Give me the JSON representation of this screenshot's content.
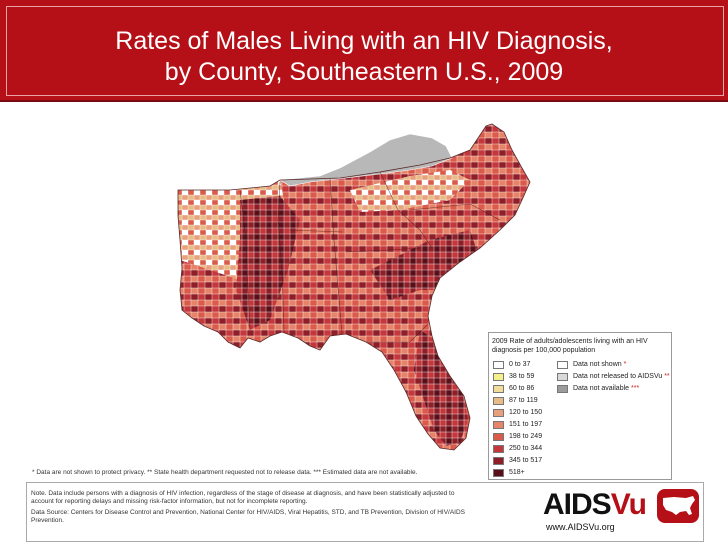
{
  "title_line1": "Rates of Males Living with an HIV Diagnosis,",
  "title_line2": "by County, Southeastern U.S., 2009",
  "legend": {
    "title_line1": "2009 Rate of adults/adolescents living with an HIV",
    "title_line2": "diagnosis per 100,000 population",
    "rate_classes": [
      {
        "label": "0 to 37",
        "color": "#ffffff"
      },
      {
        "label": "38 to 59",
        "color": "#f6f08a"
      },
      {
        "label": "60 to 86",
        "color": "#f1dc9a"
      },
      {
        "label": "87 to 119",
        "color": "#e8bb87"
      },
      {
        "label": "120 to 150",
        "color": "#e8a07c"
      },
      {
        "label": "151 to 197",
        "color": "#e58469"
      },
      {
        "label": "198 to 249",
        "color": "#da5b4b"
      },
      {
        "label": "250 to 344",
        "color": "#c4373a"
      },
      {
        "label": "345 to 517",
        "color": "#8e1f28"
      },
      {
        "label": "518+",
        "color": "#5a0f18"
      }
    ],
    "special_classes": [
      {
        "label": "Data not shown",
        "marker": "*",
        "color": "#ffffff"
      },
      {
        "label": "Data not released to AIDSVu",
        "marker": "**",
        "color": "#d9d9d9"
      },
      {
        "label": "Data not available",
        "marker": "***",
        "color": "#9b9b9b"
      }
    ]
  },
  "notes": {
    "asterisks": "* Data are not shown to protect privacy.  ** State health department requested not to release data.  *** Estimated data are not available.",
    "note_line1": "Note. Data include persons with a diagnosis of HIV infection, regardless of the stage of disease at diagnosis, and have been statistically adjusted to",
    "note_line2": "account for reporting delays and missing risk-factor information, but not for incomplete reporting.",
    "source_line1": "Data Source: Centers for Disease Control and Prevention, National Center for HIV/AIDS, Viral Hepatitis, STD, and TB Prevention, Division of HIV/AIDS",
    "source_line2": "Prevention."
  },
  "brand": {
    "name_part1": "AIDS",
    "name_part2": "Vu",
    "url": "www.AIDSVu.org",
    "brand_color": "#b50f17"
  },
  "map_colors": {
    "kentucky_not_released": "#b8b8b8",
    "water": "#ffffff"
  }
}
